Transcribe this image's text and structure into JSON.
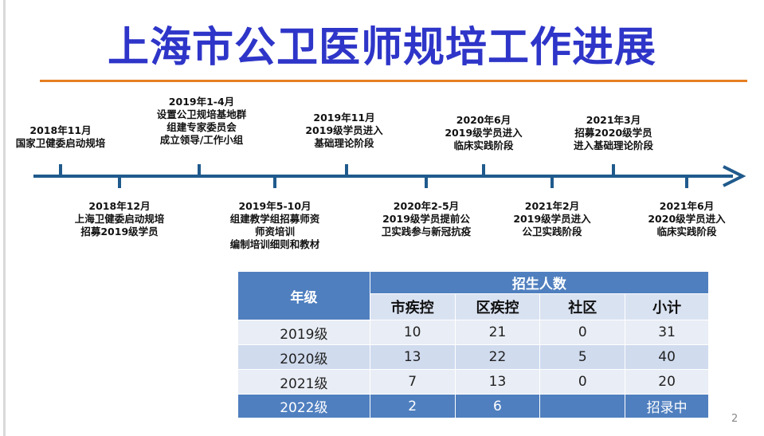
{
  "title": "上海市公卫医师规培工作进展",
  "timeline": {
    "above": [
      {
        "date": "2018年11月",
        "lines": [
          "国家卫健委启动规培"
        ]
      },
      {
        "date": "2019年1-4月",
        "lines": [
          "设置公卫规培基地群",
          "组建专家委员会",
          "成立领导/工作小组"
        ]
      },
      {
        "date": "2019年11月",
        "lines": [
          "2019级学员进入",
          "基础理论阶段"
        ]
      },
      {
        "date": "2020年6月",
        "lines": [
          "2019级学员进入",
          "临床实践阶段"
        ]
      },
      {
        "date": "2021年3月",
        "lines": [
          "招募2020级学员",
          "进入基础理论阶段"
        ]
      }
    ],
    "below": [
      {
        "date": "2018年12月",
        "lines": [
          "上海卫健委启动规培",
          "招募2019级学员"
        ]
      },
      {
        "date": "2019年5-10月",
        "lines": [
          "组建教学组招募师资",
          "师资培训",
          "编制培训细则和教材"
        ]
      },
      {
        "date": "2020年2-5月",
        "lines": [
          "2019级学员提前公",
          "卫实践参与新冠抗疫"
        ]
      },
      {
        "date": "2021年2月",
        "lines": [
          "2019级学员进入",
          "公卫实践阶段"
        ]
      },
      {
        "date": "2021年6月",
        "lines": [
          "2020级学员进入",
          "临床实践阶段"
        ]
      }
    ]
  },
  "table": {
    "grade_header": "年级",
    "enroll_header": "招生人数",
    "columns": [
      "市疾控",
      "区疾控",
      "社区",
      "小计"
    ],
    "rows": [
      {
        "grade": "2019级",
        "cells": [
          "10",
          "21",
          "0",
          "31"
        ]
      },
      {
        "grade": "2020级",
        "cells": [
          "13",
          "22",
          "5",
          "40"
        ]
      },
      {
        "grade": "2021级",
        "cells": [
          "7",
          "13",
          "0",
          "20"
        ]
      },
      {
        "grade": "2022级",
        "cells": [
          "2",
          "6",
          "",
          "招录中"
        ]
      }
    ]
  },
  "page_number": "2",
  "colors": {
    "title": "#2e35c8",
    "accent_rule": "#e67e22",
    "timeline": "#1f5a8c",
    "table_header": "#4f7fbf"
  }
}
